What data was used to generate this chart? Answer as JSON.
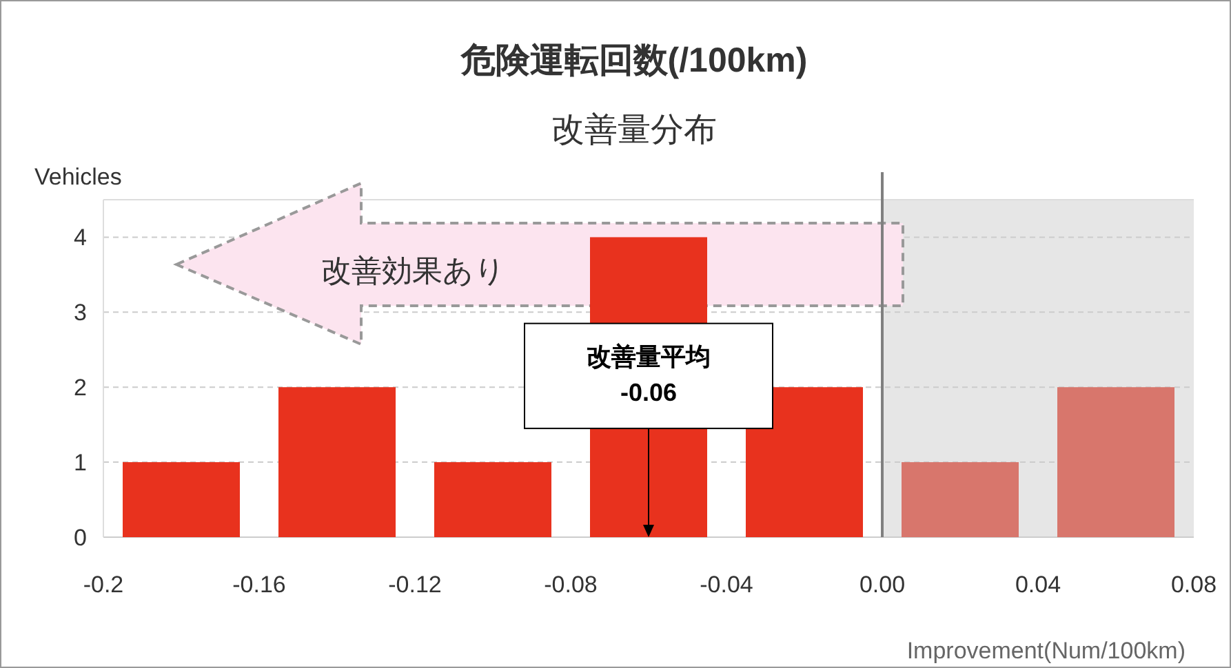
{
  "chart_data": {
    "type": "histogram",
    "title": "危険運転回数(/100km)",
    "subtitle": "改善量分布",
    "xlabel": "Improvement(Num/100km)",
    "ylabel": "Vehicles",
    "bins": [
      -0.2,
      -0.16,
      -0.12,
      -0.08,
      -0.04,
      0,
      0.04,
      0.08
    ],
    "values": [
      1,
      2,
      1,
      4,
      2,
      1,
      2
    ],
    "colors": [
      "#e8321e",
      "#e8321e",
      "#e8321e",
      "#e8321e",
      "#e8321e",
      "#d8766c",
      "#d8766c"
    ],
    "xlim": [
      -0.2,
      0.08
    ],
    "xticks": [
      -0.2,
      -0.16,
      -0.12,
      -0.08,
      -0.04,
      {
        "value": 0,
        "label": "0.00"
      },
      0.04,
      0.08
    ],
    "ylim": [
      0,
      4.5
    ],
    "yticks": [
      0,
      1,
      2,
      3,
      4
    ],
    "grid": "y",
    "bands": [
      {
        "axis": "x",
        "from": 0,
        "to": 0.08,
        "color": "#e6e6e6"
      }
    ],
    "ref_lines": [
      {
        "axis": "x",
        "value": 0,
        "color": "#808080"
      }
    ],
    "annotations": [
      "改善効果あり",
      {
        "text": "改善量平均\n-0.06",
        "x": -0.06,
        "y": 0
      }
    ]
  }
}
